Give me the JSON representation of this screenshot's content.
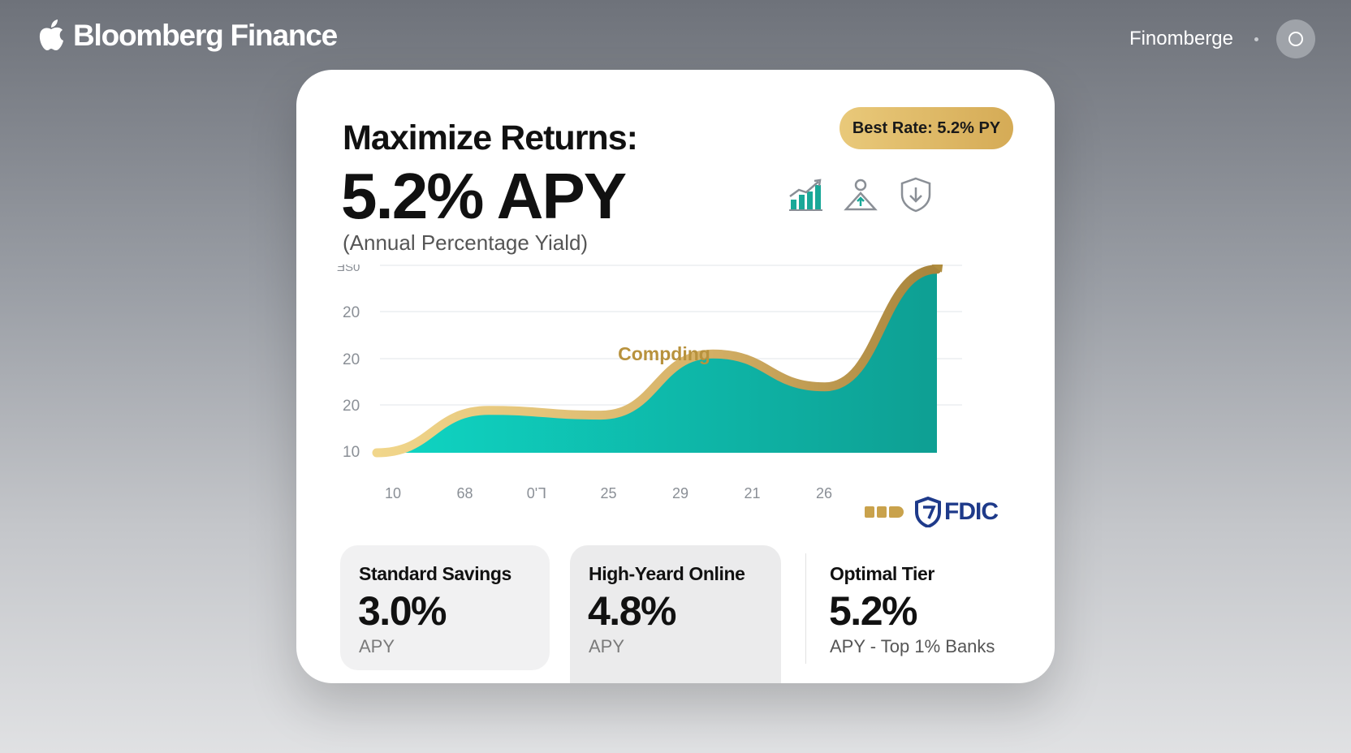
{
  "header": {
    "brand_name": "Bloomberg Finance",
    "brand_logo": "apple-logo",
    "user_name": "Finomberge",
    "avatar_icon": "circle-icon"
  },
  "card": {
    "title": "Maximize Returns:",
    "headline_rate": "5.2% APY",
    "headline_sub": "(Annual Percentage Yiald)",
    "badge": "Best Rate: 5.2% PY",
    "feature_icons": [
      "growth-chart-icon",
      "person-growth-icon",
      "shield-download-icon"
    ],
    "colors": {
      "accent_teal": "#0fc7b4",
      "accent_gold": "#c9a24c",
      "fdic_blue": "#1e3a8a"
    }
  },
  "chart_data": {
    "type": "area",
    "annotation": "Compding",
    "y_ticks": [
      "ƎS0",
      "20",
      "20",
      "20",
      "10"
    ],
    "x_ticks": [
      "10",
      "68",
      "0'ᒣ",
      "25",
      "29",
      "21",
      "26"
    ],
    "series": [
      {
        "values": [
          10,
          19,
          18,
          31,
          24,
          49
        ]
      }
    ],
    "grid": true,
    "trend_arrow": true
  },
  "fdic": {
    "label": "FDIC"
  },
  "tiers": [
    {
      "name": "Standard Savings",
      "rate": "3.0%",
      "note": "APY"
    },
    {
      "name": "High-Yeard Online",
      "rate": "4.8%",
      "note": "APY"
    },
    {
      "name": "Optimal Tier",
      "rate": "5.2%",
      "note": "APY - Top 1% Banks"
    }
  ]
}
